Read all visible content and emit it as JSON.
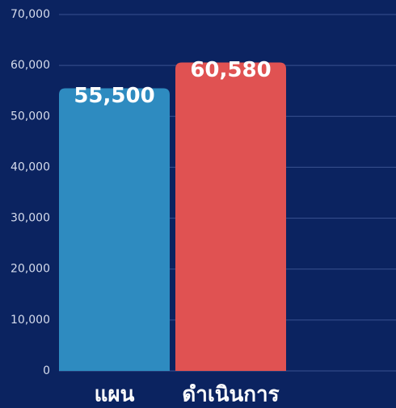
{
  "chart_data": {
    "type": "bar",
    "categories": [
      "แผน",
      "ดำเนินการ"
    ],
    "values": [
      55500,
      60580
    ],
    "value_labels": [
      "55,500",
      "60,580"
    ],
    "colors": [
      "#2e8bc0",
      "#e05252"
    ],
    "ylim": [
      0,
      70000
    ],
    "yticks": [
      0,
      {
        "value": 10000,
        "label": "10,000"
      },
      {
        "value": 20000,
        "label": "20,000"
      },
      {
        "value": 30000,
        "label": "30,000"
      },
      {
        "value": 40000,
        "label": "40,000"
      },
      {
        "value": 50000,
        "label": "50,000"
      },
      {
        "value": 60000,
        "label": "60,000"
      },
      {
        "value": 70000,
        "label": "70,000"
      }
    ],
    "grid": true
  }
}
